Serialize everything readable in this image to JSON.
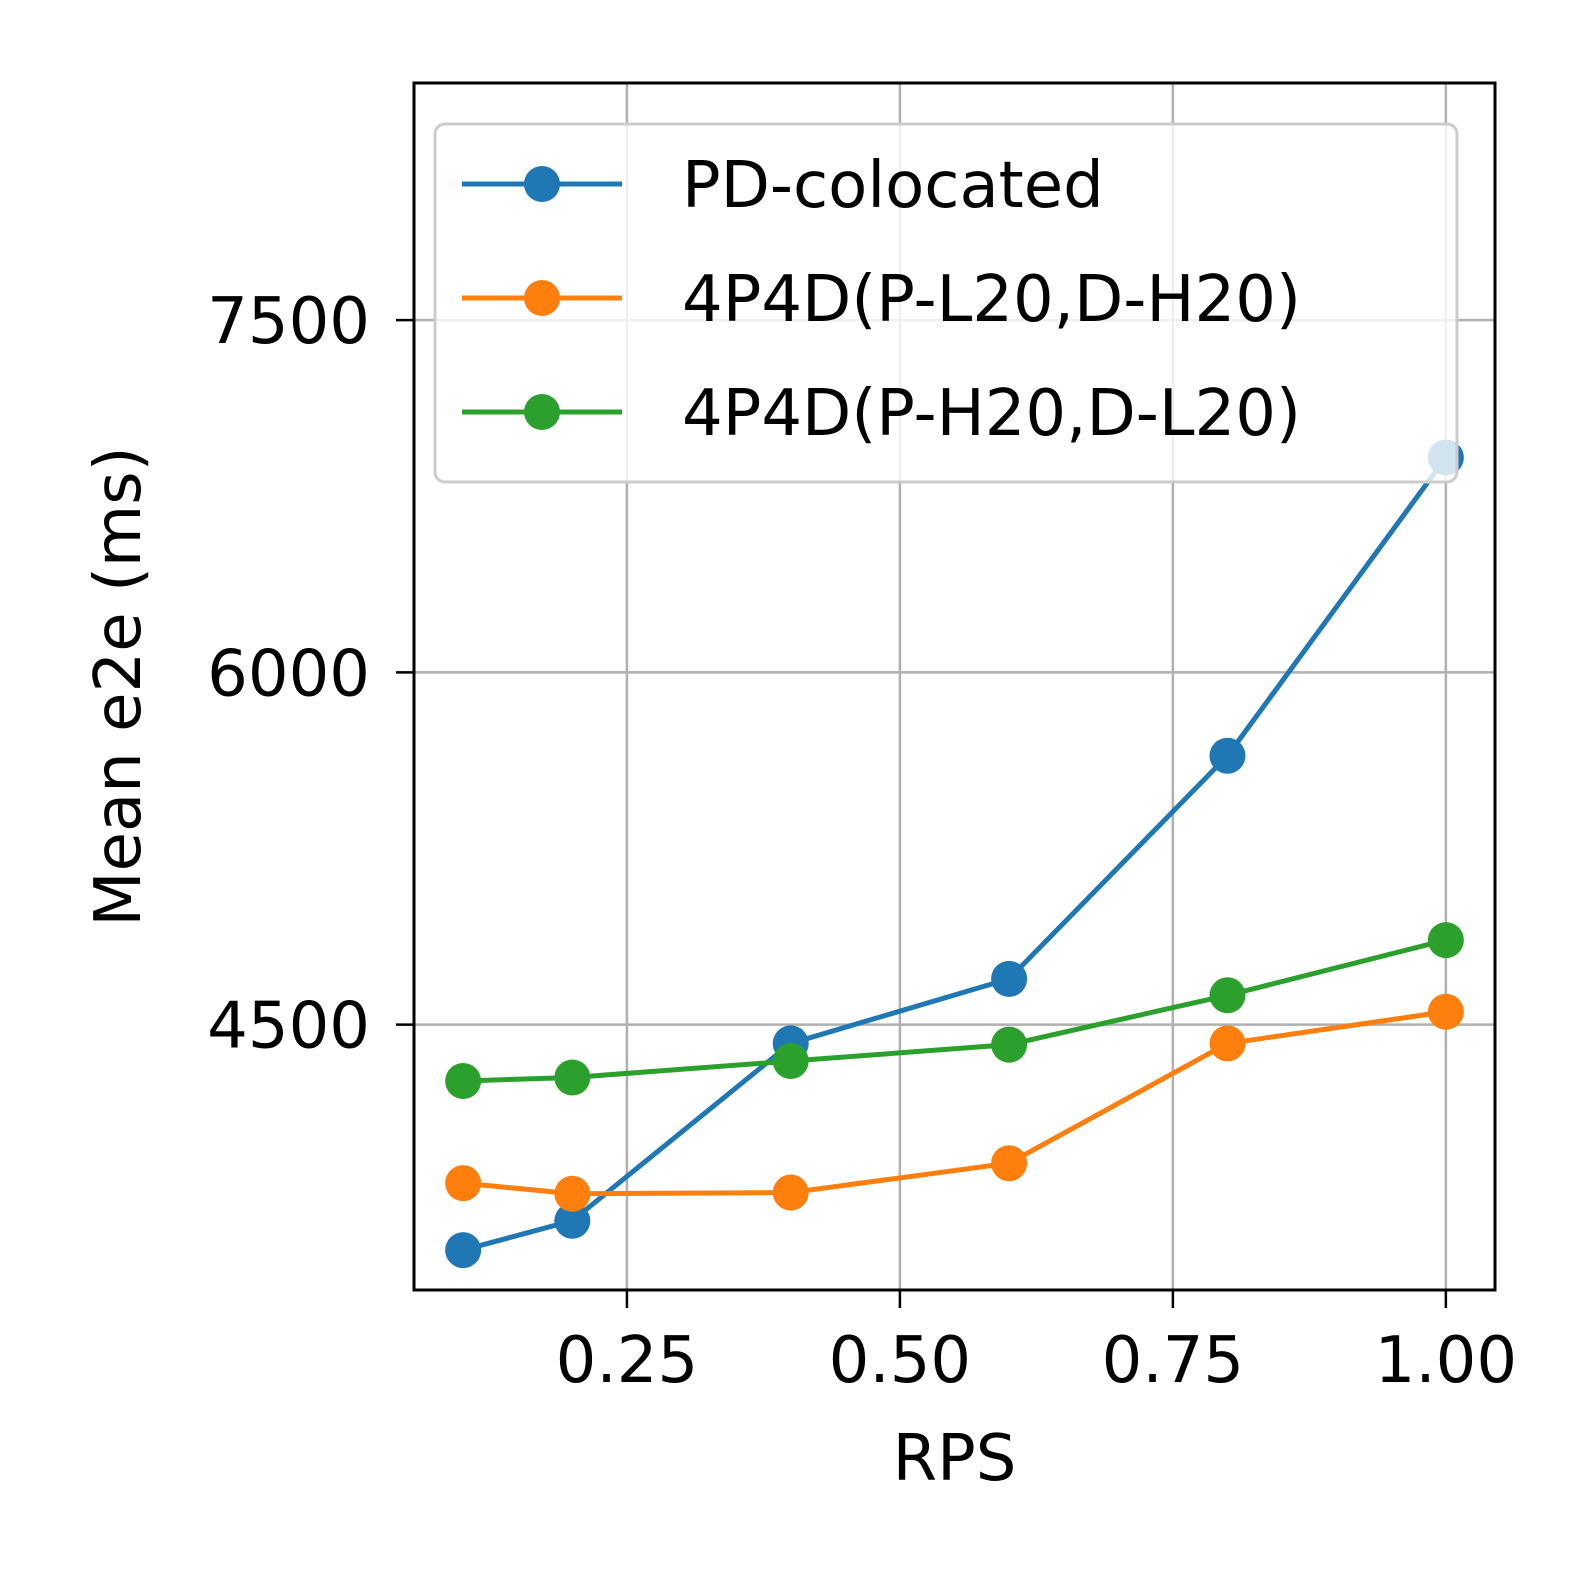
{
  "chart_data": {
    "type": "line",
    "title": "",
    "xlabel": "RPS",
    "ylabel": "Mean e2e (ms)",
    "xlim": [
      0.055,
      1.045
    ],
    "ylim": [
      3370,
      8510
    ],
    "grid": true,
    "legend_position": "top-right",
    "x_ticks": [
      {
        "value": 0.25,
        "label": "0.25"
      },
      {
        "value": 0.5,
        "label": "0.50"
      },
      {
        "value": 0.75,
        "label": "0.75"
      },
      {
        "value": 1.0,
        "label": "1.00"
      }
    ],
    "y_ticks": [
      {
        "value": 4500,
        "label": "4500"
      },
      {
        "value": 6000,
        "label": "6000"
      },
      {
        "value": 7500,
        "label": "7500"
      }
    ],
    "x": [
      0.1,
      0.2,
      0.4,
      0.6,
      0.8,
      1.0
    ],
    "series": [
      {
        "name": "PD-colocated",
        "color": "#1f77b4",
        "values": [
          3540,
          3665,
          4420,
          4695,
          5645,
          6915
        ]
      },
      {
        "name": "4P4D(P-L20,D-H20)",
        "color": "#ff7f0e",
        "values": [
          3825,
          3780,
          3785,
          3910,
          4420,
          4555
        ]
      },
      {
        "name": "4P4D(P-H20,D-L20)",
        "color": "#2ca02c",
        "values": [
          4260,
          4275,
          4345,
          4415,
          4625,
          4860
        ]
      }
    ]
  }
}
